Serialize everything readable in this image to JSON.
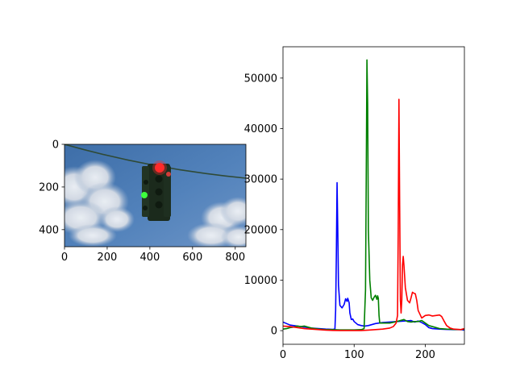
{
  "chart_data": [
    {
      "type": "image",
      "description_of_content": "photo of a hanging traffic light against blue sky with clouds",
      "xlim": [
        0,
        850
      ],
      "ylim": [
        480,
        0
      ],
      "x_ticks": [
        "0",
        "200",
        "400",
        "600",
        "800"
      ],
      "y_ticks": [
        "0",
        "200",
        "400"
      ],
      "grid": false,
      "colors": {
        "sky": "#4a78b0",
        "sky_light": "#6f98c8",
        "cloud": "#e4e8ee",
        "housing": "#1b2a1c",
        "red_lamp": "#ff2a2a",
        "green_lamp": "#3dff3d",
        "wire": "#2f4a36"
      }
    },
    {
      "type": "line",
      "title": "",
      "xlabel": "",
      "ylabel": "",
      "xlim": [
        0,
        255
      ],
      "ylim": [
        -2700,
        56200
      ],
      "x_ticks": [
        0,
        100,
        200
      ],
      "y_ticks": [
        0,
        10000,
        20000,
        30000,
        40000,
        50000
      ],
      "x_tick_labels": [
        "0",
        "100",
        "200"
      ],
      "y_tick_labels": [
        "0",
        "10000",
        "20000",
        "30000",
        "40000",
        "50000"
      ],
      "grid": false,
      "legend": "none",
      "series": [
        {
          "color": "#0000ff",
          "points": [
            [
              0,
              1700
            ],
            [
              5,
              1400
            ],
            [
              10,
              1100
            ],
            [
              20,
              900
            ],
            [
              30,
              700
            ],
            [
              40,
              500
            ],
            [
              50,
              400
            ],
            [
              60,
              300
            ],
            [
              70,
              250
            ],
            [
              73,
              300
            ],
            [
              74,
              4000
            ],
            [
              75,
              15000
            ],
            [
              76,
              29300
            ],
            [
              77,
              20000
            ],
            [
              78,
              9000
            ],
            [
              80,
              5000
            ],
            [
              83,
              4500
            ],
            [
              86,
              5200
            ],
            [
              88,
              6300
            ],
            [
              90,
              5800
            ],
            [
              91,
              6400
            ],
            [
              93,
              5500
            ],
            [
              94,
              3500
            ],
            [
              96,
              2200
            ],
            [
              98,
              2300
            ],
            [
              100,
              1800
            ],
            [
              105,
              1200
            ],
            [
              110,
              1000
            ],
            [
              115,
              900
            ],
            [
              120,
              1000
            ],
            [
              125,
              1200
            ],
            [
              130,
              1400
            ],
            [
              140,
              1600
            ],
            [
              150,
              1700
            ],
            [
              160,
              1800
            ],
            [
              170,
              1900
            ],
            [
              180,
              2000
            ],
            [
              185,
              1700
            ],
            [
              190,
              1900
            ],
            [
              195,
              1600
            ],
            [
              200,
              1200
            ],
            [
              205,
              600
            ],
            [
              210,
              400
            ],
            [
              220,
              300
            ],
            [
              230,
              250
            ],
            [
              240,
              200
            ],
            [
              250,
              200
            ],
            [
              255,
              100
            ]
          ]
        },
        {
          "color": "#008000",
          "points": [
            [
              0,
              300
            ],
            [
              5,
              400
            ],
            [
              10,
              600
            ],
            [
              15,
              700
            ],
            [
              20,
              900
            ],
            [
              25,
              800
            ],
            [
              30,
              900
            ],
            [
              35,
              700
            ],
            [
              40,
              500
            ],
            [
              50,
              300
            ],
            [
              60,
              200
            ],
            [
              70,
              200
            ],
            [
              80,
              150
            ],
            [
              90,
              150
            ],
            [
              100,
              150
            ],
            [
              110,
              200
            ],
            [
              114,
              400
            ],
            [
              116,
              8000
            ],
            [
              117,
              30000
            ],
            [
              118,
              53600
            ],
            [
              119,
              45000
            ],
            [
              120,
              20000
            ],
            [
              122,
              10000
            ],
            [
              124,
              6500
            ],
            [
              126,
              6000
            ],
            [
              128,
              6600
            ],
            [
              130,
              7000
            ],
            [
              132,
              6200
            ],
            [
              133,
              6900
            ],
            [
              134,
              6400
            ],
            [
              135,
              3000
            ],
            [
              136,
              1500
            ],
            [
              140,
              1500
            ],
            [
              150,
              1500
            ],
            [
              160,
              1800
            ],
            [
              165,
              2000
            ],
            [
              170,
              2200
            ],
            [
              175,
              1800
            ],
            [
              180,
              1700
            ],
            [
              185,
              1800
            ],
            [
              190,
              1800
            ],
            [
              195,
              2000
            ],
            [
              200,
              1500
            ],
            [
              205,
              1000
            ],
            [
              210,
              800
            ],
            [
              215,
              600
            ],
            [
              220,
              400
            ],
            [
              230,
              300
            ],
            [
              240,
              250
            ],
            [
              250,
              200
            ],
            [
              255,
              300
            ]
          ]
        },
        {
          "color": "#ff0000",
          "points": [
            [
              0,
              900
            ],
            [
              10,
              800
            ],
            [
              20,
              600
            ],
            [
              30,
              400
            ],
            [
              40,
              300
            ],
            [
              50,
              200
            ],
            [
              60,
              100
            ],
            [
              70,
              50
            ],
            [
              80,
              30
            ],
            [
              90,
              20
            ],
            [
              100,
              20
            ],
            [
              110,
              30
            ],
            [
              120,
              100
            ],
            [
              130,
              200
            ],
            [
              140,
              300
            ],
            [
              150,
              500
            ],
            [
              155,
              800
            ],
            [
              159,
              1500
            ],
            [
              161,
              3000
            ],
            [
              162,
              20000
            ],
            [
              163,
              45800
            ],
            [
              164,
              25000
            ],
            [
              165,
              6000
            ],
            [
              166,
              3500
            ],
            [
              167,
              6000
            ],
            [
              168,
              13000
            ],
            [
              169,
              14700
            ],
            [
              170,
              13000
            ],
            [
              172,
              8500
            ],
            [
              175,
              6000
            ],
            [
              178,
              5500
            ],
            [
              180,
              6500
            ],
            [
              182,
              7600
            ],
            [
              184,
              7400
            ],
            [
              186,
              7300
            ],
            [
              188,
              6000
            ],
            [
              190,
              4000
            ],
            [
              195,
              2500
            ],
            [
              200,
              3000
            ],
            [
              205,
              3100
            ],
            [
              210,
              2900
            ],
            [
              215,
              3000
            ],
            [
              220,
              3100
            ],
            [
              223,
              2800
            ],
            [
              226,
              2000
            ],
            [
              230,
              1000
            ],
            [
              235,
              500
            ],
            [
              240,
              300
            ],
            [
              250,
              200
            ],
            [
              255,
              400
            ]
          ]
        }
      ]
    }
  ]
}
